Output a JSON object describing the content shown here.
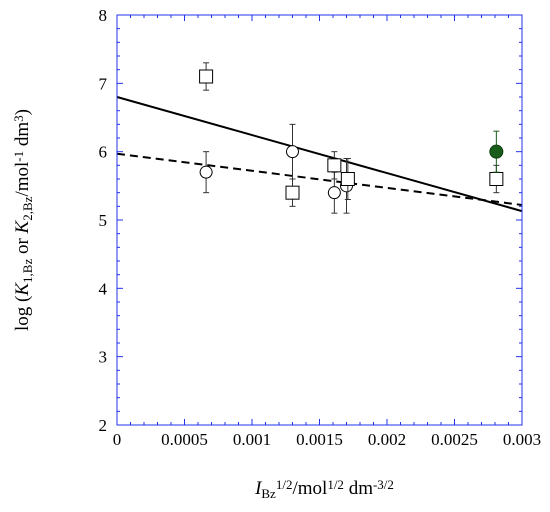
{
  "chart_data": {
    "type": "scatter",
    "xlim": [
      0,
      0.003
    ],
    "ylim": [
      2,
      8
    ],
    "x_ticks": [
      "0",
      "0.0005",
      "0.001",
      "0.0015",
      "0.002",
      "0.0025",
      "0.003"
    ],
    "y_ticks": [
      "2",
      "3",
      "4",
      "5",
      "6",
      "7",
      "8"
    ],
    "xlabel": {
      "parts": [
        {
          "t": "I",
          "style": "italic"
        },
        {
          "t": "Bz",
          "shift": "sub"
        },
        {
          "t": "1/2",
          "shift": "super"
        },
        {
          "t": "/mol"
        },
        {
          "t": "1/2",
          "shift": "super"
        },
        {
          "t": " dm"
        },
        {
          "t": "-3/2",
          "shift": "super"
        }
      ]
    },
    "ylabel": {
      "parts": [
        {
          "t": "log ("
        },
        {
          "t": "K",
          "style": "italic"
        },
        {
          "t": "1,Bz",
          "shift": "sub"
        },
        {
          "t": " or "
        },
        {
          "t": "K",
          "style": "italic"
        },
        {
          "t": "2,Bz",
          "shift": "sub"
        },
        {
          "t": "/mol"
        },
        {
          "t": "-1",
          "shift": "super"
        },
        {
          "t": " dm"
        },
        {
          "t": "3",
          "shift": "super"
        },
        {
          "t": ")"
        }
      ]
    },
    "grid": false,
    "series": [
      {
        "marker": "circle-open",
        "color": "#000000",
        "points": [
          {
            "x": 0.00066,
            "y": 5.7,
            "err": 0.3
          },
          {
            "x": 0.0013,
            "y": 6.0,
            "err": 0.4
          },
          {
            "x": 0.00161,
            "y": 5.4,
            "err": 0.3
          },
          {
            "x": 0.0017,
            "y": 5.5,
            "err": 0.4
          }
        ]
      },
      {
        "marker": "square-open",
        "color": "#000000",
        "points": [
          {
            "x": 0.00066,
            "y": 7.1,
            "err": 0.2
          },
          {
            "x": 0.0013,
            "y": 5.4,
            "err": 0.2
          },
          {
            "x": 0.00161,
            "y": 5.8,
            "err": 0.2
          },
          {
            "x": 0.00171,
            "y": 5.6,
            "err": 0.3
          },
          {
            "x": 0.00281,
            "y": 5.6,
            "err": 0.2
          }
        ]
      },
      {
        "marker": "circle-filled",
        "color": "#1a5c1a",
        "points": [
          {
            "x": 0.00281,
            "y": 6.0,
            "err": 0.3
          }
        ]
      }
    ],
    "lines": [
      {
        "style": "solid",
        "x": [
          0,
          0.003
        ],
        "y": [
          6.8,
          5.13
        ]
      },
      {
        "style": "dashed",
        "x": [
          0,
          0.003
        ],
        "y": [
          5.97,
          5.22
        ]
      }
    ]
  }
}
